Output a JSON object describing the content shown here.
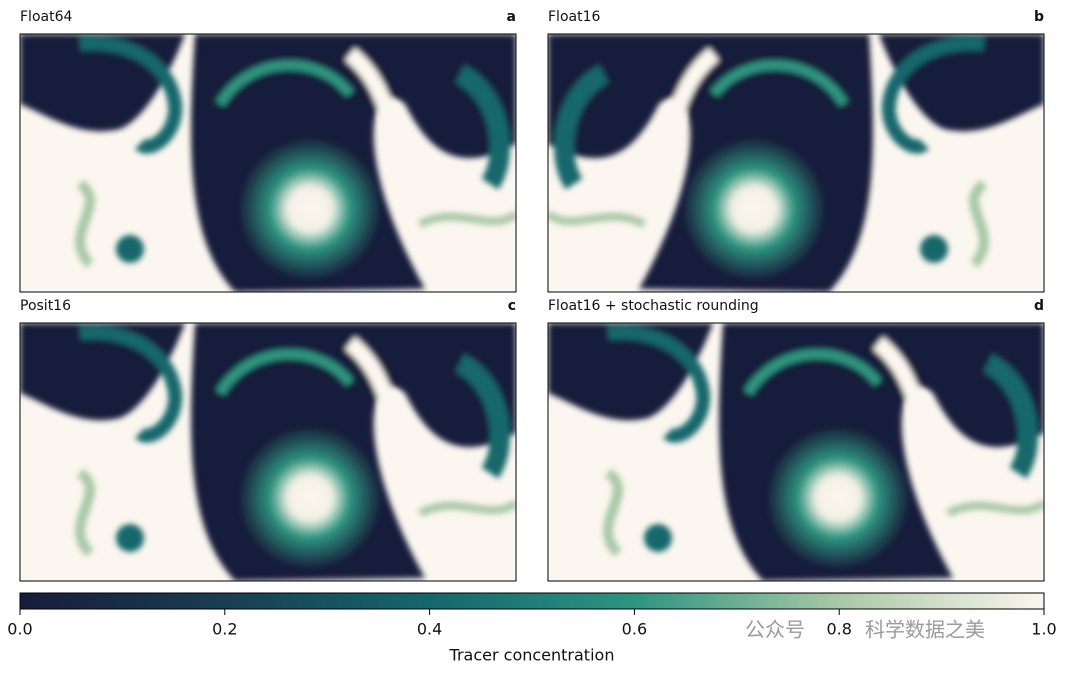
{
  "panels": [
    {
      "title": "Float64",
      "letter": "a"
    },
    {
      "title": "Float16",
      "letter": "b"
    },
    {
      "title": "Posit16",
      "letter": "c"
    },
    {
      "title": "Float16 + stochastic rounding",
      "letter": "d"
    }
  ],
  "colorbar": {
    "label": "Tracer concentration",
    "lim": [
      0,
      1
    ],
    "ticks": [
      {
        "value": 0,
        "label": "0.0"
      },
      {
        "value": 0.2,
        "label": "0.2"
      },
      {
        "value": 0.4,
        "label": "0.4"
      },
      {
        "value": 0.6,
        "label": "0.6"
      },
      {
        "value": 0.8,
        "label": "0.8"
      },
      {
        "value": 1,
        "label": "1.0"
      }
    ],
    "colors": [
      "#171c3a",
      "#193e52",
      "#15676c",
      "#2d9580",
      "#a8c8a6",
      "#fbf6ef"
    ]
  },
  "watermark": [
    "公众号",
    "科学数据之美"
  ]
}
